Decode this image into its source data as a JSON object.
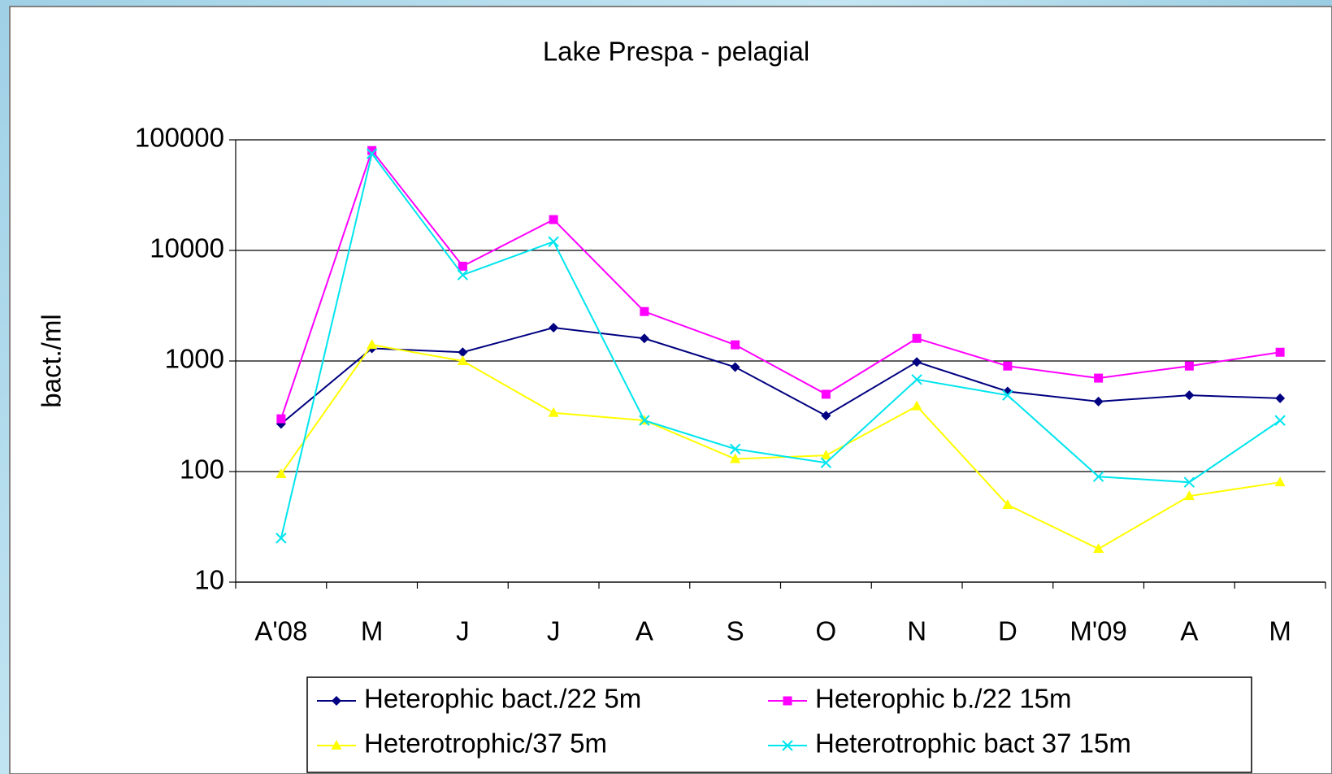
{
  "chart_data": {
    "type": "line",
    "title": "Lake Prespa - pelagial",
    "y_label": "bact./ml",
    "categories": [
      "A'08",
      "M",
      "J",
      "J",
      "A",
      "S",
      "O",
      "N",
      "D",
      "M'09",
      "A",
      "M"
    ],
    "log_scale": true,
    "grid": true,
    "legend": "bottom",
    "ylim": [
      10,
      100000
    ],
    "yticks": [
      10,
      100,
      1000,
      10000,
      100000
    ],
    "series": [
      {
        "name": "Heterophic bact./22 5m",
        "color": "#000080",
        "marker": "diamond",
        "values": [
          270,
          1300,
          1200,
          2000,
          1600,
          880,
          320,
          980,
          530,
          430,
          490,
          460
        ]
      },
      {
        "name": "Heterophic b./22 15m",
        "color": "#ff00ff",
        "marker": "square",
        "values": [
          300,
          80000,
          7200,
          19000,
          2800,
          1400,
          500,
          1600,
          900,
          700,
          900,
          1200
        ]
      },
      {
        "name": "Heterotrophic/37 5m",
        "color": "#ffff00",
        "marker": "triangle",
        "values": [
          95,
          1400,
          1000,
          340,
          290,
          130,
          140,
          390,
          50,
          20,
          60,
          80
        ]
      },
      {
        "name": "Heterotrophic bact 37 15m",
        "color": "#00e5ee",
        "marker": "x",
        "values": [
          25,
          75000,
          6000,
          12000,
          290,
          160,
          120,
          680,
          490,
          90,
          80,
          290
        ]
      }
    ]
  }
}
